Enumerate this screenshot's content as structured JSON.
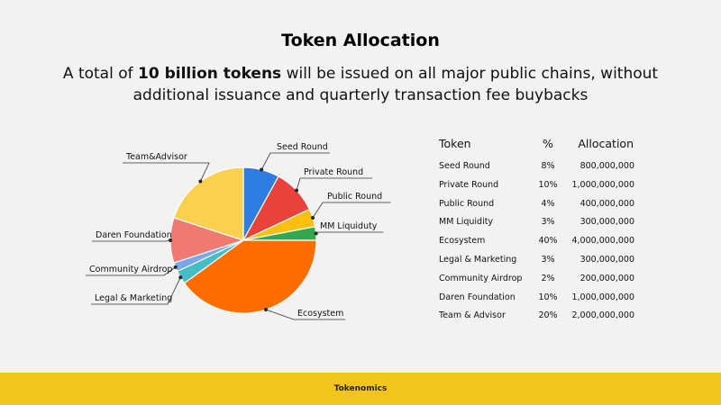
{
  "page": {
    "title": "Token Allocation",
    "subtitle_pre": "A total of ",
    "subtitle_bold": "10 billion tokens",
    "subtitle_post": " will be issued on all major public chains, without additional issuance and quarterly transaction fee buybacks",
    "footer": "Tokenomics"
  },
  "chart_data": {
    "type": "pie",
    "start_angle_deg": 0,
    "direction": "clockwise",
    "slices": [
      {
        "label": "Seed Round",
        "value": 8,
        "color": "#2f7de1"
      },
      {
        "label": "Private Round",
        "value": 10,
        "color": "#e8423a"
      },
      {
        "label": "Public Round",
        "value": 4,
        "color": "#fbbf0f"
      },
      {
        "label": "MM Liquiduty",
        "value": 3,
        "color": "#35a84e"
      },
      {
        "label": "Ecosystem",
        "value": 40,
        "color": "#ff6d01"
      },
      {
        "label": "Legal & Marketing",
        "value": 3,
        "color": "#46bdc6"
      },
      {
        "label": "Community Airdrop",
        "value": 2,
        "color": "#7aa6f0"
      },
      {
        "label": "Daren Foundation",
        "value": 10,
        "color": "#f07a72"
      },
      {
        "label": "Team&Advisor",
        "value": 20,
        "color": "#fcd04f"
      }
    ]
  },
  "table": {
    "headers": {
      "token": "Token",
      "pct": "%",
      "alloc": "Allocation"
    },
    "rows": [
      {
        "token": "Seed Round",
        "pct": "8%",
        "alloc": "800,000,000"
      },
      {
        "token": "Private Round",
        "pct": "10%",
        "alloc": "1,000,000,000"
      },
      {
        "token": "Public Round",
        "pct": "4%",
        "alloc": "400,000,000"
      },
      {
        "token": "MM Liquidity",
        "pct": "3%",
        "alloc": "300,000,000"
      },
      {
        "token": "Ecosystem",
        "pct": "40%",
        "alloc": "4,000,000,000"
      },
      {
        "token": "Legal & Marketing",
        "pct": "3%",
        "alloc": "300,000,000"
      },
      {
        "token": "Community Airdrop",
        "pct": "2%",
        "alloc": "200,000,000"
      },
      {
        "token": "Daren Foundation",
        "pct": "10%",
        "alloc": "1,000,000,000"
      },
      {
        "token": "Team & Advisor",
        "pct": "20%",
        "alloc": "2,000,000,000"
      }
    ]
  }
}
